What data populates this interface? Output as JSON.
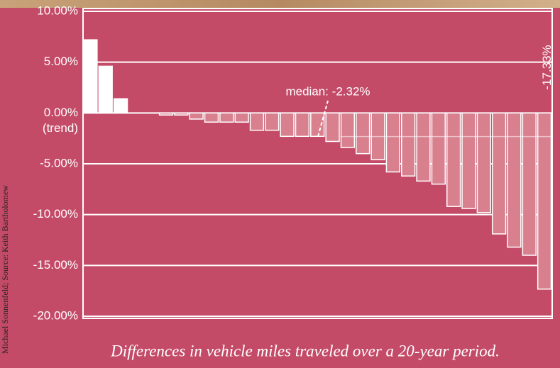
{
  "chart_data": {
    "type": "bar",
    "credit": "Michael Sonnenfeld; Source: Keith Bartholomew",
    "caption": "Differences in vehicle miles traveled over a 20-year period.",
    "zero_note": "(trend)",
    "median": {
      "value": -2.32,
      "label": "median: -2.32%"
    },
    "categories": [
      null,
      null,
      null,
      null,
      null,
      null,
      null,
      null,
      null,
      null,
      null,
      null,
      null,
      null,
      null,
      null,
      null,
      null,
      null,
      null,
      null,
      null,
      null,
      null,
      null,
      null,
      null,
      null,
      null,
      null,
      null
    ],
    "values": [
      7.2,
      4.6,
      1.4,
      0,
      0,
      -0.2,
      -0.2,
      -0.6,
      -0.9,
      -0.9,
      -0.9,
      -1.7,
      -1.7,
      -2.3,
      -2.3,
      -2.3,
      -2.8,
      -3.4,
      -4.0,
      -4.6,
      -5.8,
      -6.2,
      -6.7,
      -7.0,
      -9.2,
      -9.4,
      -9.8,
      -11.9,
      -13.2,
      -14.0,
      -17.33
    ],
    "value_labels": [
      null,
      null,
      null,
      null,
      null,
      null,
      null,
      null,
      null,
      null,
      null,
      null,
      null,
      null,
      null,
      null,
      null,
      null,
      null,
      null,
      null,
      null,
      null,
      null,
      null,
      null,
      null,
      null,
      null,
      null,
      "-17.33%"
    ],
    "color": "#d9808f",
    "positive_color": "#ffffff",
    "ylim": [
      -20,
      10
    ],
    "yticks": [
      {
        "value": -20,
        "label": "-20.00%"
      },
      {
        "value": -15,
        "label": "-15.00%"
      },
      {
        "value": -10,
        "label": "-10.00%"
      },
      {
        "value": -5,
        "label": "-5.00%"
      },
      {
        "value": 0,
        "label": "0.00%"
      },
      {
        "value": 5,
        "label": "5.00%"
      },
      {
        "value": 10,
        "label": "10.00%"
      }
    ],
    "grid": true
  }
}
